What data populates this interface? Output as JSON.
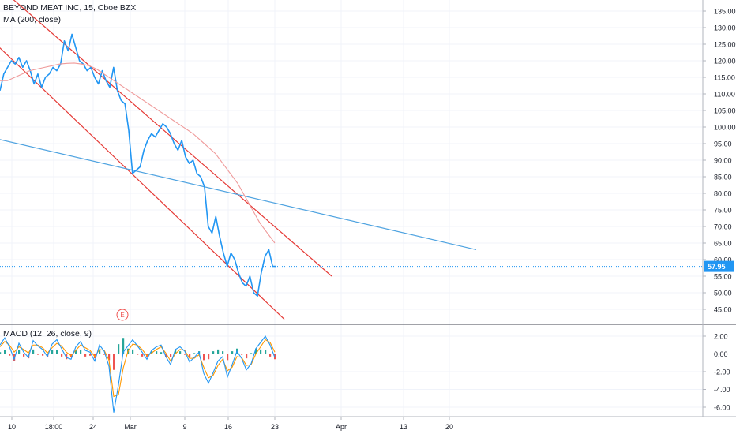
{
  "legend": {
    "symbol": "BEYOND MEAT INC, 15, Cboe BZX",
    "ma": "MA (200, close)",
    "macd": "MACD (12, 26, close, 9)"
  },
  "colors": {
    "price": "#2196f3",
    "ma": "#ef9a9a",
    "channel": "#e53935",
    "trendline": "#4fa3e0",
    "price_label_bg": "#2196f3",
    "macd_pos": "#26a69a",
    "macd_neg": "#ef5350",
    "macd_line": "#2196f3",
    "signal_line": "#ff9800",
    "grid": "#f0f3fa",
    "axis_text": "#131722"
  },
  "last_price_label": "57.95",
  "earnings_marker": "E",
  "chart_data": [
    {
      "type": "line",
      "name": "price",
      "title": "BEYOND MEAT INC, 15, Cboe BZX",
      "xlabel": "",
      "ylabel": "",
      "ylim": [
        41,
        138
      ],
      "y_ticks": [
        "135.00",
        "130.00",
        "125.00",
        "120.00",
        "115.00",
        "110.00",
        "105.00",
        "100.00",
        "95.00",
        "90.00",
        "85.00",
        "80.00",
        "75.00",
        "70.00",
        "65.00",
        "60.00",
        "55.00",
        "50.00",
        "45.00"
      ],
      "x_ticks": [
        "10",
        "18:00",
        "24",
        "Mar",
        "9",
        "16",
        "23",
        "Apr",
        "13",
        "20"
      ],
      "last_price": 57.95,
      "series": [
        {
          "name": "BEYOND MEAT INC",
          "values": [
            111,
            116,
            118,
            120,
            119,
            121,
            118,
            120,
            117,
            113,
            116,
            112,
            115,
            116,
            118,
            117,
            119,
            126,
            123,
            128,
            124,
            120,
            119,
            117,
            118,
            115,
            113,
            117,
            114,
            112,
            118,
            111,
            108,
            107,
            99,
            86,
            87,
            88,
            93,
            96,
            98,
            97,
            99,
            101,
            100,
            98,
            95,
            93,
            96,
            91,
            89,
            90,
            86,
            85,
            82,
            70,
            68,
            73,
            67,
            62,
            58,
            62,
            60,
            56,
            53,
            52,
            55,
            50,
            49,
            56,
            61,
            63,
            58,
            57.95
          ]
        },
        {
          "name": "MA (200, close)",
          "values": [
            114,
            114,
            115,
            116,
            117,
            117.5,
            118,
            118.5,
            119,
            119.2,
            119.3,
            119,
            118.5,
            117.5,
            116,
            114.5,
            113,
            111.5,
            110,
            108.5,
            107,
            105.5,
            104,
            102.5,
            101,
            99.5,
            98,
            96,
            94,
            92,
            89,
            86,
            83,
            79,
            75,
            71,
            68,
            65
          ]
        }
      ],
      "annotations": [
        {
          "label": "channel-upper",
          "from": {
            "date": "Feb 6",
            "price": 143
          },
          "to": {
            "date": "Mar 27",
            "price": 55
          }
        },
        {
          "label": "channel-lower",
          "from": {
            "date": "Feb 6",
            "price": 125
          },
          "to": {
            "date": "Mar 23",
            "price": 42
          }
        },
        {
          "label": "trendline",
          "from": {
            "date": "Feb 6",
            "price": 96.5
          },
          "to": {
            "date": "Apr 27",
            "price": 63
          }
        }
      ]
    },
    {
      "type": "bar",
      "name": "MACD",
      "title": "MACD (12, 26, close, 9)",
      "ylim": [
        -7.3,
        3.0
      ],
      "y_ticks": [
        "2.00",
        "0.00",
        "-2.00",
        "-4.00",
        "-6.00"
      ],
      "series": [
        {
          "name": "MACD",
          "values": [
            1.0,
            1.8,
            0.8,
            -0.6,
            1.2,
            0.2,
            -0.4,
            1.5,
            0.9,
            0.5,
            -0.3,
            1.1,
            1.6,
            0.6,
            -0.4,
            -0.6,
            0.8,
            1.4,
            0.4,
            0.2,
            -0.8,
            1.0,
            0.3,
            -1.4,
            -6.6,
            -3.5,
            0.2,
            0.9,
            1.6,
            0.9,
            0.2,
            -0.6,
            0.4,
            0.8,
            1.0,
            -0.3,
            -1.2,
            0.5,
            0.8,
            0.3,
            -0.9,
            -0.4,
            0.2,
            -2.2,
            -3.3,
            -2.1,
            -0.8,
            -0.3,
            -2.6,
            -1.2,
            0.3,
            -0.5,
            -1.8,
            -1.1,
            0.6,
            1.3,
            2.0,
            1.0,
            -0.4
          ]
        },
        {
          "name": "Signal",
          "values": [
            0.8,
            1.4,
            1.0,
            0.2,
            0.8,
            0.5,
            0.1,
            1.0,
            1.0,
            0.7,
            0.1,
            0.7,
            1.2,
            0.9,
            0.2,
            -0.2,
            0.4,
            1.0,
            0.7,
            0.4,
            -0.3,
            0.5,
            0.4,
            -0.7,
            -4.8,
            -4.6,
            -1.6,
            0.3,
            1.1,
            1.0,
            0.5,
            -0.2,
            0.1,
            0.5,
            0.8,
            0.1,
            -0.8,
            0.0,
            0.5,
            0.4,
            -0.5,
            -0.5,
            -0.1,
            -1.5,
            -2.7,
            -2.4,
            -1.3,
            -0.6,
            -1.9,
            -1.5,
            -0.3,
            -0.4,
            -1.3,
            -1.2,
            0.0,
            0.8,
            1.6,
            1.3,
            0.2
          ]
        },
        {
          "name": "Histogram",
          "values": [
            0.2,
            0.4,
            -0.2,
            -0.8,
            0.4,
            -0.3,
            -0.5,
            0.5,
            -0.1,
            -0.2,
            -0.4,
            0.4,
            0.4,
            -0.3,
            -0.6,
            -0.4,
            0.4,
            0.4,
            -0.3,
            -0.2,
            -0.5,
            0.5,
            -0.1,
            -0.7,
            -1.8,
            1.1,
            1.8,
            0.6,
            0.5,
            -0.1,
            -0.3,
            -0.4,
            0.3,
            0.3,
            0.2,
            -0.4,
            -0.4,
            0.5,
            0.3,
            -0.1,
            -0.4,
            0.1,
            0.3,
            -0.7,
            -0.6,
            0.3,
            0.5,
            0.3,
            -0.7,
            0.3,
            0.6,
            -0.1,
            -0.5,
            0.1,
            0.6,
            0.5,
            0.4,
            -0.3,
            -0.6
          ]
        }
      ]
    }
  ]
}
